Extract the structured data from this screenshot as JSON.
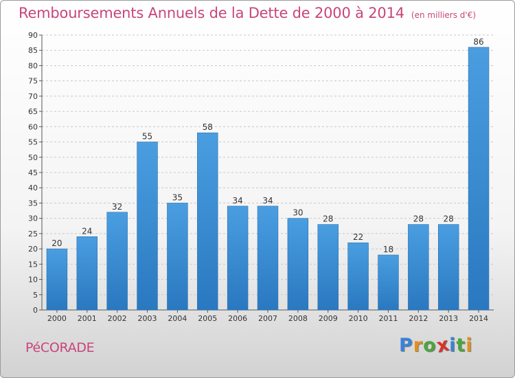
{
  "header": {
    "title": "Remboursements Annuels de la Dette de 2000 à 2014",
    "subtitle": "(en milliers d'€)"
  },
  "footer": {
    "commune": "PéCORADE"
  },
  "logo": {
    "letters": [
      "P",
      "r",
      "o",
      "x",
      "i",
      "t",
      "i"
    ],
    "colors": [
      "#3b82d6",
      "#e3901c",
      "#4aa63c",
      "#d6342b",
      "#3b82d6",
      "#4aa63c",
      "#e3901c"
    ]
  },
  "chart_data": {
    "type": "bar",
    "categories": [
      "2000",
      "2001",
      "2002",
      "2003",
      "2004",
      "2005",
      "2006",
      "2007",
      "2008",
      "2009",
      "2010",
      "2011",
      "2012",
      "2013",
      "2014"
    ],
    "values": [
      20,
      24,
      32,
      55,
      35,
      58,
      34,
      34,
      30,
      28,
      22,
      18,
      28,
      28,
      86
    ],
    "ylim": [
      0,
      90
    ],
    "ytick_step": 5,
    "grid": "horizontal dashed",
    "bar_color": "#4a9ee0",
    "bar_color_dark": "#2a78c0",
    "xlabel": "",
    "ylabel": ""
  }
}
